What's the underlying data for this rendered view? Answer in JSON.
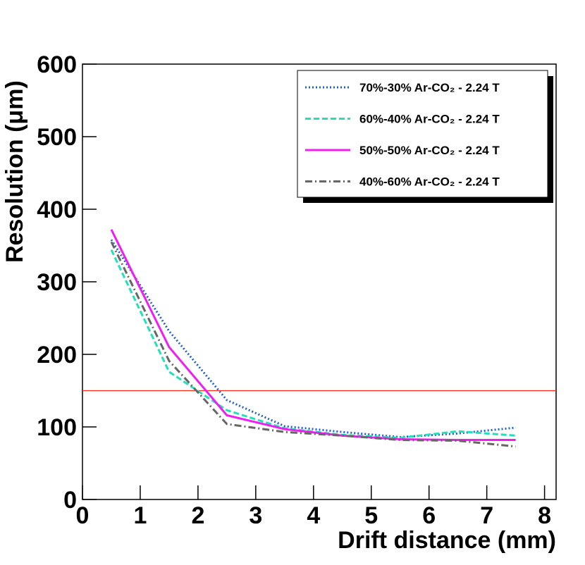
{
  "chart_data": {
    "type": "line",
    "x_label": "Drift distance (mm)",
    "y_label": "Resolution (μm)",
    "x": [
      0.5,
      1.5,
      2.5,
      3.5,
      4.5,
      5.5,
      6.5,
      7.5
    ],
    "series": [
      {
        "name": "70%-30% Ar-CO₂ - 2.24 T",
        "color": "#1f5fd6",
        "dash": "dotted",
        "values": [
          358,
          232,
          137,
          101,
          93,
          86,
          91,
          99
        ]
      },
      {
        "name": "60%-40% Ar-CO₂ - 2.24 T",
        "color": "#22e0b8",
        "dash": "dashed",
        "values": [
          344,
          176,
          123,
          98,
          89,
          85,
          94,
          88
        ]
      },
      {
        "name": "50%-50% Ar-CO₂ - 2.24 T",
        "color": "#f01ef0",
        "dash": "solid",
        "values": [
          372,
          210,
          116,
          97,
          88,
          83,
          82,
          82
        ]
      },
      {
        "name": "40%-60% Ar-CO₂ - 2.24 T",
        "color": "#666666",
        "dash": "dashdot",
        "values": [
          355,
          191,
          104,
          93,
          88,
          82,
          81,
          73
        ]
      }
    ],
    "reference_line": {
      "value": 150,
      "color": "#ff2a1a"
    },
    "xlim": [
      0,
      8.2
    ],
    "xticks": [
      0,
      1,
      2,
      3,
      4,
      5,
      6,
      7,
      8
    ],
    "ylim": [
      0,
      600
    ],
    "yticks": [
      0,
      100,
      200,
      300,
      400,
      500,
      600
    ],
    "legend": "upper right"
  }
}
